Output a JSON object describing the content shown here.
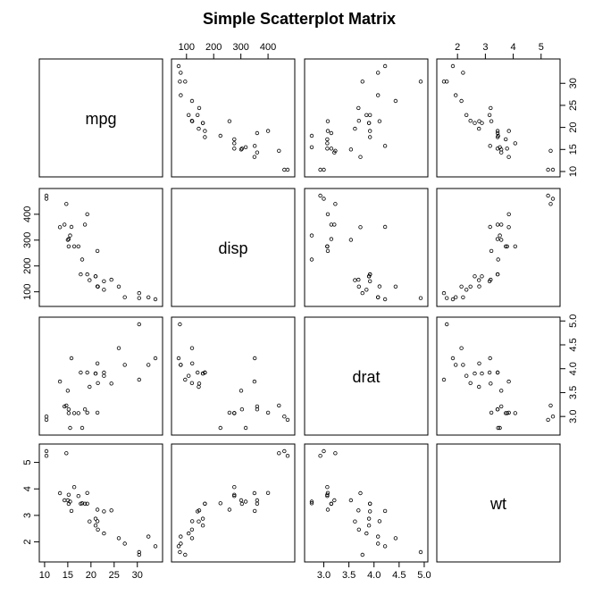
{
  "chart_data": {
    "type": "scatter-matrix",
    "title": "Simple Scatterplot Matrix",
    "variables": [
      "mpg",
      "disp",
      "drat",
      "wt"
    ],
    "axes": {
      "mpg": {
        "range": [
          10.4,
          33.9
        ],
        "ticks": [
          10,
          15,
          20,
          25,
          30
        ]
      },
      "disp": {
        "range": [
          71.1,
          472
        ],
        "ticks": [
          100,
          200,
          300,
          400
        ]
      },
      "drat": {
        "range": [
          2.76,
          4.93
        ],
        "ticks": [
          3.0,
          3.5,
          4.0,
          4.5,
          5.0
        ],
        "tick_labels": [
          "3.0",
          "3.5",
          "4.0",
          "4.5",
          "5.0"
        ]
      },
      "wt": {
        "range": [
          1.513,
          5.424
        ],
        "ticks": [
          2,
          3,
          4,
          5
        ]
      }
    },
    "observations": {
      "mpg": [
        21.0,
        21.0,
        22.8,
        21.4,
        18.7,
        18.1,
        14.3,
        24.4,
        22.8,
        19.2,
        17.8,
        16.4,
        17.3,
        15.2,
        10.4,
        10.4,
        14.7,
        32.4,
        30.4,
        33.9,
        21.5,
        15.5,
        15.2,
        13.3,
        19.2,
        27.3,
        26.0,
        30.4,
        15.8,
        19.7,
        15.0,
        21.4
      ],
      "disp": [
        160,
        160,
        108,
        258,
        360,
        225,
        360,
        146.7,
        140.8,
        167.6,
        167.6,
        275.8,
        275.8,
        275.8,
        472,
        460,
        440,
        78.7,
        75.7,
        71.1,
        120.1,
        318,
        304,
        350,
        400,
        79,
        120.3,
        95.1,
        351,
        145,
        301,
        121
      ],
      "drat": [
        3.9,
        3.9,
        3.85,
        3.08,
        3.15,
        2.76,
        3.21,
        3.69,
        3.92,
        3.92,
        3.92,
        3.07,
        3.07,
        3.07,
        2.93,
        3.0,
        3.23,
        4.08,
        4.93,
        4.22,
        3.7,
        2.76,
        3.15,
        3.73,
        3.08,
        4.08,
        4.43,
        3.77,
        4.22,
        3.62,
        3.54,
        4.11
      ],
      "wt": [
        2.62,
        2.875,
        2.32,
        3.215,
        3.44,
        3.46,
        3.57,
        3.19,
        3.15,
        3.44,
        3.44,
        4.07,
        3.73,
        3.78,
        5.25,
        5.424,
        5.345,
        2.2,
        1.615,
        1.835,
        2.465,
        3.52,
        3.435,
        3.84,
        3.845,
        1.935,
        2.14,
        1.513,
        3.17,
        2.77,
        3.57,
        2.78
      ]
    },
    "tick_axes": {
      "top": [
        "disp",
        "wt"
      ],
      "bottom": [
        "mpg",
        "drat"
      ],
      "left": [
        "disp",
        "wt"
      ],
      "right": [
        "mpg",
        "drat"
      ]
    }
  }
}
